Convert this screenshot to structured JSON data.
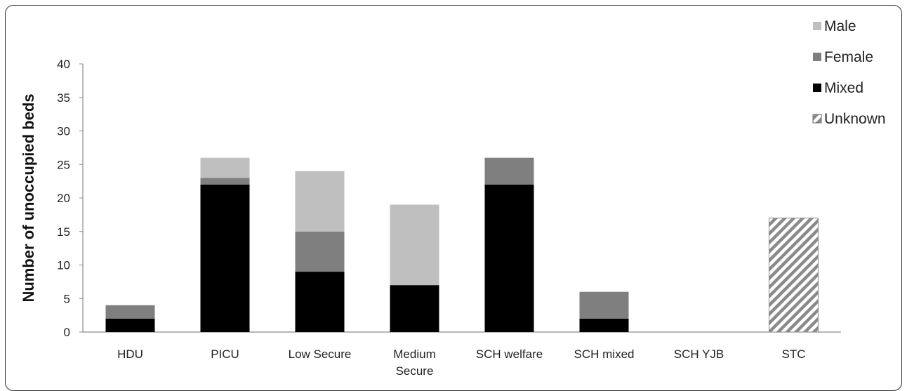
{
  "chart_data": {
    "type": "bar",
    "stacked": true,
    "categories": [
      "HDU",
      "PICU",
      "Low Secure",
      "Medium Secure",
      "SCH welfare",
      "SCH mixed",
      "SCH YJB",
      "STC"
    ],
    "category_lines": [
      [
        "HDU"
      ],
      [
        "PICU"
      ],
      [
        "Low Secure"
      ],
      [
        "Medium",
        "Secure"
      ],
      [
        "SCH welfare"
      ],
      [
        "SCH mixed"
      ],
      [
        "SCH YJB"
      ],
      [
        "STC"
      ]
    ],
    "series": [
      {
        "name": "Mixed",
        "color": "#000000",
        "pattern": "solid",
        "values": [
          2,
          22,
          9,
          7,
          22,
          2,
          0,
          0
        ]
      },
      {
        "name": "Female",
        "color": "#7f7f7f",
        "pattern": "solid",
        "values": [
          2,
          1,
          6,
          0,
          4,
          4,
          0,
          0
        ]
      },
      {
        "name": "Male",
        "color": "#bfbfbf",
        "pattern": "solid",
        "values": [
          0,
          3,
          9,
          12,
          0,
          0,
          0,
          0
        ]
      },
      {
        "name": "Unknown",
        "color": "#8a8a8a",
        "pattern": "hatch",
        "values": [
          0,
          0,
          0,
          0,
          0,
          0,
          0,
          17
        ]
      }
    ],
    "legend_order": [
      "Male",
      "Female",
      "Mixed",
      "Unknown"
    ],
    "legend_position": "top-right",
    "title": "",
    "xlabel": "",
    "ylabel": "Number of unoccupied beds",
    "ylim": [
      0,
      40
    ],
    "yticks": [
      0,
      5,
      10,
      15,
      20,
      25,
      30,
      35,
      40
    ],
    "grid": false
  }
}
